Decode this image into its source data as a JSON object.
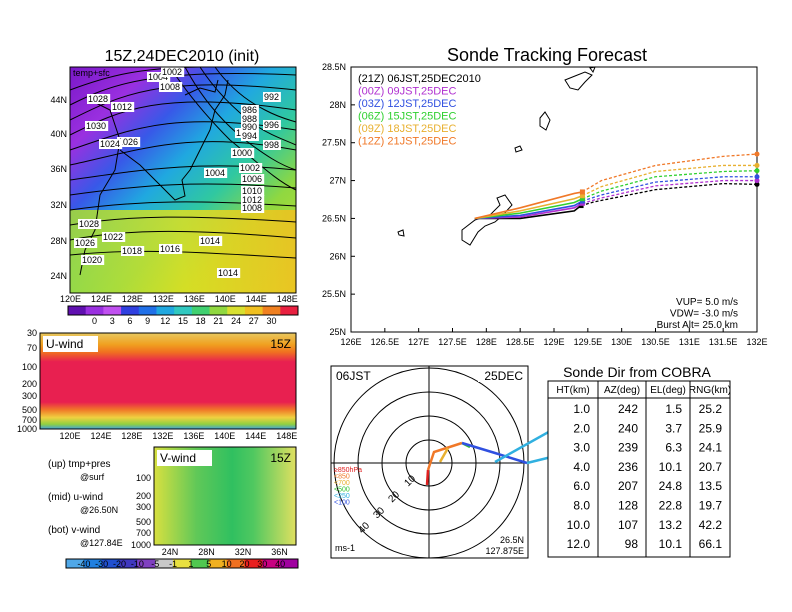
{
  "colors": {
    "s00": "#b030d0",
    "s03": "#3050e0",
    "s06": "#30d030",
    "s09": "#e8b030",
    "s12": "#f07828",
    "s21": "#000000"
  },
  "top_map": {
    "title": "15Z,24DEC2010 (init)",
    "corner_label": "temp+sfc",
    "lon_ticks": [
      "120E",
      "124E",
      "128E",
      "132E",
      "136E",
      "140E",
      "144E",
      "148E"
    ],
    "lat_ticks": [
      "44N",
      "40N",
      "36N",
      "32N",
      "28N",
      "24N"
    ],
    "colorbar": [
      "0",
      "3",
      "6",
      "9",
      "12",
      "15",
      "18",
      "21",
      "24",
      "27",
      "30"
    ],
    "pressure_labels": [
      "1012",
      "1004",
      "1002",
      "1000",
      "1008",
      "1028",
      "1022",
      "1026",
      "1030",
      "1024",
      "1018",
      "1016",
      "1014",
      "1014",
      "1020",
      "1026",
      "1028",
      "1010",
      "1012",
      "1006",
      "1008",
      "1004",
      "1002",
      "986",
      "988",
      "990",
      "992",
      "994",
      "996",
      "998",
      "1000"
    ]
  },
  "u_wind": {
    "title": "U-wind",
    "time": "15Z",
    "lev_ticks": [
      "30",
      "70",
      "100",
      "200",
      "300",
      "500",
      "700",
      "1000"
    ],
    "lon_ticks": [
      "120E",
      "124E",
      "128E",
      "132E",
      "136E",
      "140E",
      "144E",
      "148E"
    ]
  },
  "v_wind": {
    "title": "V-wind",
    "time": "15Z",
    "lev_ticks": [
      "100",
      "200",
      "300",
      "500",
      "700",
      "1000"
    ],
    "lat_ticks": [
      "24N",
      "28N",
      "32N",
      "36N"
    ],
    "colorbar": [
      "-40",
      "-30",
      "-20",
      "-10",
      "-5",
      "-1",
      "1",
      "5",
      "10",
      "20",
      "30",
      "40"
    ]
  },
  "notes": [
    {
      "l1": "(up) tmp+pres",
      "l2": "@surf"
    },
    {
      "l1": "(mid) u-wind",
      "l2": "@26.50N"
    },
    {
      "l1": "(bot) v-wind",
      "l2": "@127.84E"
    }
  ],
  "track": {
    "title": "Sonde Tracking Forecast",
    "legend": [
      {
        "text": "(21Z) 06JST,25DEC2010",
        "color": "#000000"
      },
      {
        "text": "(00Z) 09JST,25DEC",
        "color": "#b030d0"
      },
      {
        "text": "(03Z) 12JST,25DEC",
        "color": "#3050e0"
      },
      {
        "text": "(06Z) 15JST,25DEC",
        "color": "#30d030"
      },
      {
        "text": "(09Z) 18JST,25DEC",
        "color": "#e8b030"
      },
      {
        "text": "(12Z) 21JST,25DEC",
        "color": "#f07828"
      }
    ],
    "params": [
      "VUP= 5.0 m/s",
      "VDW= -3.0 m/s",
      "Burst Alt= 25.0 km"
    ],
    "lat_ticks": [
      "28.5N",
      "28N",
      "27.5N",
      "27N",
      "26.5N",
      "26N",
      "25.5N",
      "25N"
    ],
    "lon_ticks": [
      "126E",
      "126.5E",
      "127E",
      "127.5E",
      "128E",
      "128.5E",
      "129E",
      "129.5E",
      "130E",
      "130.5E",
      "131E",
      "131.5E",
      "132E"
    ]
  },
  "chart_data": [
    {
      "type": "line",
      "title": "Sonde Tracking Forecast",
      "xlim": [
        126,
        132
      ],
      "ylim": [
        25,
        28.5
      ],
      "series": [
        {
          "name": "(21Z) 06JST,25DEC2010",
          "color": "#000000",
          "points": [
            [
              127.83,
              26.5
            ],
            [
              128.5,
              26.5
            ],
            [
              129.3,
              26.6
            ],
            [
              129.6,
              26.72
            ],
            [
              130.5,
              26.88
            ],
            [
              131.5,
              26.96
            ],
            [
              132.0,
              26.95
            ]
          ],
          "burst": [
            129.4,
            26.67
          ]
        },
        {
          "name": "(00Z) 09JST,25DEC",
          "color": "#b030d0",
          "points": [
            [
              127.83,
              26.5
            ],
            [
              128.5,
              26.52
            ],
            [
              129.3,
              26.64
            ],
            [
              129.7,
              26.77
            ],
            [
              130.5,
              26.93
            ],
            [
              131.5,
              27.0
            ],
            [
              132.0,
              27.0
            ]
          ],
          "burst": [
            129.42,
            26.7
          ]
        },
        {
          "name": "(03Z) 12JST,25DEC",
          "color": "#3050e0",
          "points": [
            [
              127.83,
              26.5
            ],
            [
              128.5,
              26.54
            ],
            [
              129.3,
              26.67
            ],
            [
              129.7,
              26.81
            ],
            [
              130.5,
              26.98
            ],
            [
              131.5,
              27.05
            ],
            [
              132.0,
              27.05
            ]
          ],
          "burst": [
            129.42,
            26.73
          ]
        },
        {
          "name": "(06Z) 15JST,25DEC",
          "color": "#30d030",
          "points": [
            [
              127.83,
              26.5
            ],
            [
              128.5,
              26.57
            ],
            [
              129.3,
              26.71
            ],
            [
              129.7,
              26.86
            ],
            [
              130.5,
              27.05
            ],
            [
              131.5,
              27.12
            ],
            [
              132.0,
              27.13
            ]
          ],
          "burst": [
            129.42,
            26.76
          ]
        },
        {
          "name": "(09Z) 18JST,25DEC",
          "color": "#e8b030",
          "points": [
            [
              127.83,
              26.5
            ],
            [
              128.5,
              26.6
            ],
            [
              129.3,
              26.76
            ],
            [
              129.7,
              26.92
            ],
            [
              130.5,
              27.12
            ],
            [
              131.5,
              27.2
            ],
            [
              132.0,
              27.2
            ]
          ],
          "burst": [
            129.42,
            26.8
          ]
        },
        {
          "name": "(12Z) 21JST,25DEC",
          "color": "#f07828",
          "points": [
            [
              127.83,
              26.5
            ],
            [
              128.5,
              26.64
            ],
            [
              129.3,
              26.83
            ],
            [
              129.7,
              27.0
            ],
            [
              130.5,
              27.2
            ],
            [
              131.5,
              27.32
            ],
            [
              132.0,
              27.35
            ]
          ],
          "burst": [
            129.42,
            26.85
          ]
        }
      ]
    },
    {
      "type": "table",
      "title": "Sonde Dir from COBRA",
      "columns": [
        "HT(km)",
        "AZ(deg)",
        "EL(deg)",
        "RNG(km)"
      ],
      "rows": [
        [
          "1.0",
          "242",
          "1.5",
          "25.2"
        ],
        [
          "2.0",
          "240",
          "3.7",
          "25.9"
        ],
        [
          "3.0",
          "239",
          "6.3",
          "24.1"
        ],
        [
          "4.0",
          "236",
          "10.1",
          "20.7"
        ],
        [
          "6.0",
          "207",
          "24.8",
          "13.5"
        ],
        [
          "8.0",
          "128",
          "22.8",
          "19.7"
        ],
        [
          "10.0",
          "107",
          "13.2",
          "42.2"
        ],
        [
          "12.0",
          "98",
          "10.1",
          "66.1"
        ]
      ]
    }
  ],
  "polar": {
    "left_label": "06JST",
    "right_label": "25DEC",
    "ring_labels": [
      "10",
      "20",
      "30",
      "40"
    ],
    "level_legend": [
      {
        "text": "≥850hPa",
        "color": "#e02020"
      },
      {
        "text": "<850",
        "color": "#f07828"
      },
      {
        "text": "<700",
        "color": "#e8b030"
      },
      {
        "text": "<500",
        "color": "#30c030"
      },
      {
        "text": "<250",
        "color": "#30b0e0"
      },
      {
        "text": "<100",
        "color": "#3050e0"
      }
    ],
    "unit": "ms-1",
    "lat": "26.5N",
    "lon": "127.875E"
  }
}
